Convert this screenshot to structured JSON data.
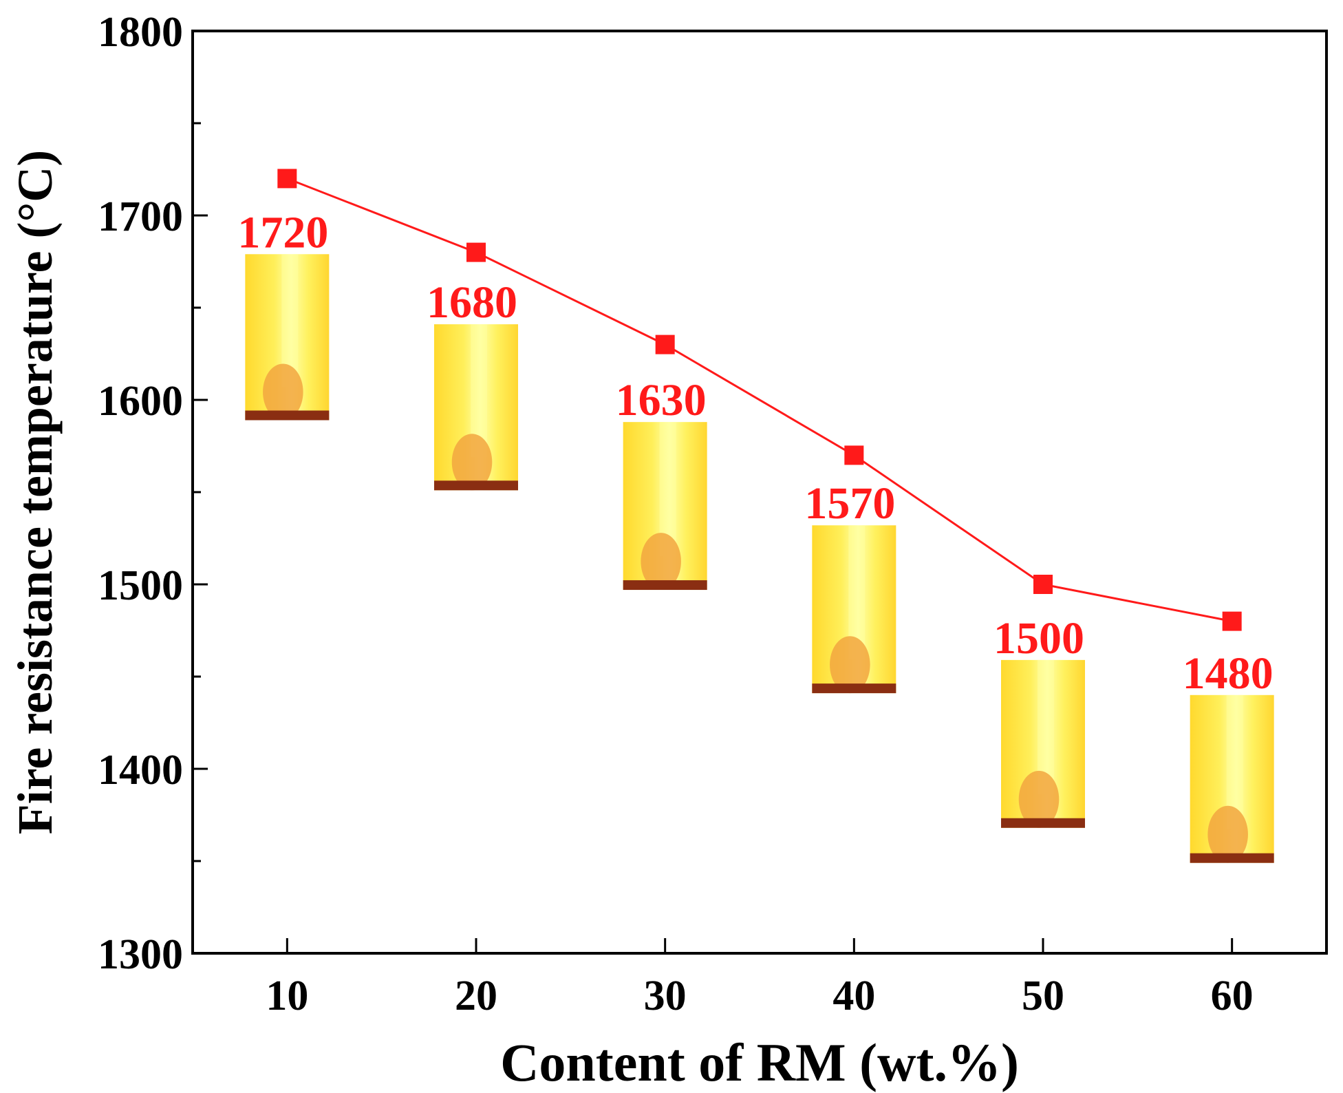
{
  "chart_data": {
    "type": "line",
    "xlabel": "Content of RM (wt.%)",
    "ylabel": "Fire resistance temperature (°C)",
    "x": [
      10,
      20,
      30,
      40,
      50,
      60
    ],
    "x_tick_labels": [
      "10",
      "20",
      "30",
      "40",
      "50",
      "60"
    ],
    "xlim": [
      5,
      65
    ],
    "ylim": [
      1300,
      1800
    ],
    "y_ticks": [
      1300,
      1400,
      1500,
      1600,
      1700,
      1800
    ],
    "y_tick_labels": [
      "1300",
      "1400",
      "1500",
      "1600",
      "1700",
      "1800"
    ],
    "y_minor_step": 50,
    "grid": false,
    "series": [
      {
        "name": "Fire resistance temperature",
        "values": [
          1720,
          1680,
          1630,
          1570,
          1500,
          1480
        ],
        "marker": "square",
        "color": "#ff1a1a"
      }
    ],
    "data_labels": [
      "1720",
      "1680",
      "1630",
      "1570",
      "1500",
      "1480"
    ],
    "sample_photos": [
      {
        "x": 10,
        "y_top": 1679,
        "y_bottom": 1589
      },
      {
        "x": 20,
        "y_top": 1641,
        "y_bottom": 1551
      },
      {
        "x": 30,
        "y_top": 1588,
        "y_bottom": 1497
      },
      {
        "x": 40,
        "y_top": 1532,
        "y_bottom": 1441
      },
      {
        "x": 50,
        "y_top": 1459,
        "y_bottom": 1368
      },
      {
        "x": 60,
        "y_top": 1440,
        "y_bottom": 1349
      }
    ],
    "colors": {
      "line": "#ff1a1a",
      "label": "#ff1a1a",
      "axis": "#000000",
      "photo_base": "#ffe833",
      "photo_glow": "#ffff9e",
      "photo_blob": "#f2a640",
      "photo_crust": "#8a2e12"
    }
  }
}
